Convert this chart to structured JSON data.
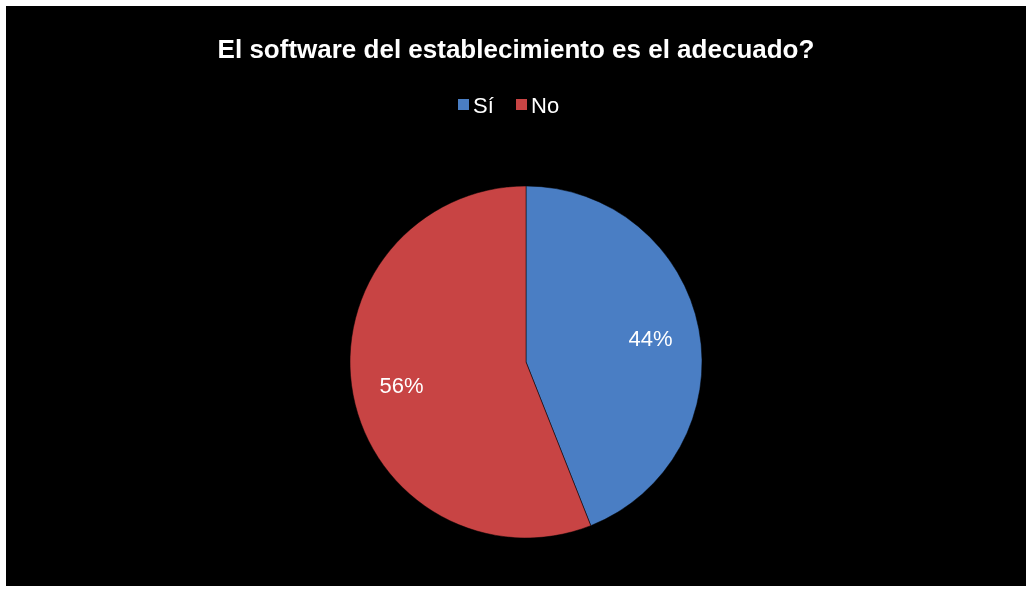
{
  "chart_data": {
    "type": "pie",
    "title": "El software del establecimiento es el adecuado?",
    "categories": [
      "Sí",
      "No"
    ],
    "values": [
      44,
      56
    ],
    "colors": [
      "#4a7ec4",
      "#c84444"
    ],
    "value_labels": [
      "44%",
      "56%"
    ],
    "legend": "top"
  }
}
